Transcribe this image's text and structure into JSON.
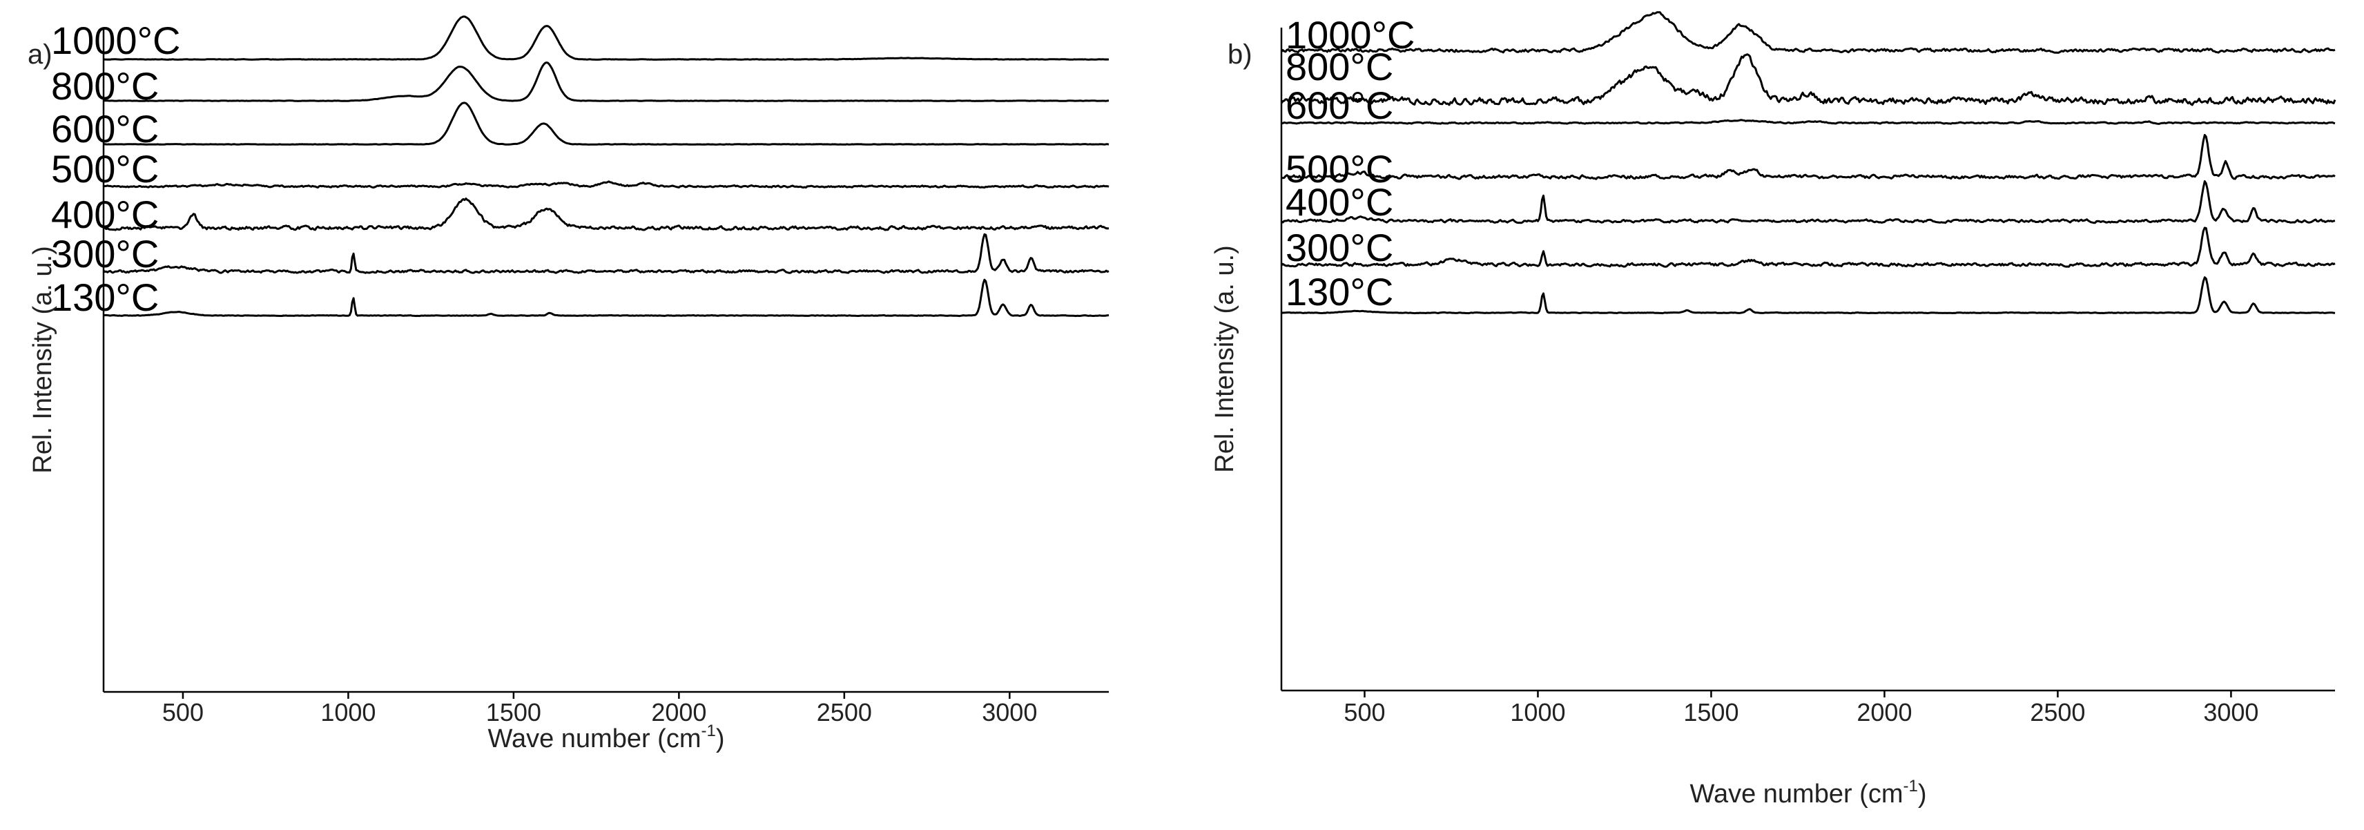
{
  "chart_data": [
    {
      "type": "line",
      "panel_label": "a)",
      "xlabel_main": "Wave number (cm",
      "xlabel_sup": "-1",
      "xlabel_close": ")",
      "ylabel": "Rel. Intensity (a. u.)",
      "xlim": [
        260,
        3300
      ],
      "xticks": [
        500,
        1000,
        1500,
        2000,
        2500,
        3000
      ],
      "y_ticks_labeled": false,
      "series": [
        {
          "name": "1000°C",
          "peaks": [
            [
              1350,
              40,
              1.0
            ],
            [
              1600,
              32,
              0.78
            ],
            [
              2700,
              100,
              0.03
            ]
          ],
          "noise": 0.006
        },
        {
          "name": "800°C",
          "peaks": [
            [
              1340,
              45,
              0.85
            ],
            [
              1170,
              60,
              0.12
            ],
            [
              1600,
              28,
              0.95
            ]
          ],
          "noise": 0.006
        },
        {
          "name": "600°C",
          "peaks": [
            [
              1350,
              35,
              1.0
            ],
            [
              1590,
              30,
              0.5
            ]
          ],
          "noise": 0.006
        },
        {
          "name": "500°C",
          "peaks": [
            [
              650,
              60,
              0.1
            ],
            [
              1360,
              35,
              0.12
            ],
            [
              1560,
              30,
              0.12
            ],
            [
              1650,
              30,
              0.13
            ],
            [
              1790,
              25,
              0.2
            ],
            [
              1900,
              25,
              0.15
            ]
          ],
          "noise": 0.05
        },
        {
          "name": "400°C",
          "peaks": [
            [
              530,
              12,
              0.35
            ],
            [
              1355,
              35,
              0.7
            ],
            [
              1600,
              35,
              0.5
            ]
          ],
          "noise": 0.05
        },
        {
          "name": "300°C",
          "peaks": [
            [
              480,
              40,
              0.12
            ],
            [
              1015,
              4,
              0.5
            ],
            [
              2925,
              10,
              1.0
            ],
            [
              2980,
              10,
              0.3
            ],
            [
              3065,
              8,
              0.35
            ]
          ],
          "noise": 0.04
        },
        {
          "name": "130°C",
          "peaks": [
            [
              480,
              40,
              0.1
            ],
            [
              1015,
              4,
              0.5
            ],
            [
              1430,
              8,
              0.05
            ],
            [
              1610,
              8,
              0.07
            ],
            [
              2925,
              10,
              1.0
            ],
            [
              2980,
              10,
              0.3
            ],
            [
              3065,
              8,
              0.3
            ]
          ],
          "noise": 0.01
        }
      ]
    },
    {
      "type": "line",
      "panel_label": "b)",
      "xlabel_main": "Wave number (cm",
      "xlabel_sup": "-1",
      "xlabel_close": ")",
      "ylabel": "Rel. Intensity (a. u.)",
      "xlim": [
        260,
        3300
      ],
      "xticks": [
        500,
        1000,
        1500,
        2000,
        2500,
        3000
      ],
      "y_ticks_labeled": false,
      "series": [
        {
          "name": "1000°C",
          "peaks": [
            [
              1340,
              60,
              0.95
            ],
            [
              1590,
              40,
              0.65
            ],
            [
              1230,
              40,
              0.25
            ]
          ],
          "noise": 0.05
        },
        {
          "name": "800°C",
          "peaks": [
            [
              1320,
              45,
              0.85
            ],
            [
              1600,
              35,
              1.0
            ],
            [
              1230,
              30,
              0.25
            ],
            [
              1450,
              30,
              0.2
            ],
            [
              1780,
              20,
              0.15
            ],
            [
              2430,
              20,
              0.15
            ],
            [
              2760,
              10,
              0.12
            ]
          ],
          "noise": 0.09
        },
        {
          "name": "600°C",
          "peaks": [
            [
              1580,
              60,
              0.2
            ],
            [
              1800,
              30,
              0.1
            ],
            [
              2430,
              20,
              0.12
            ],
            [
              2760,
              10,
              0.15
            ]
          ],
          "noise": 0.06
        },
        {
          "name": "500°C",
          "peaks": [
            [
              2925,
              10,
              1.0
            ],
            [
              2985,
              8,
              0.35
            ],
            [
              1560,
              20,
              0.15
            ],
            [
              1620,
              20,
              0.15
            ],
            [
              480,
              30,
              0.1
            ]
          ],
          "noise": 0.05
        },
        {
          "name": "400°C",
          "peaks": [
            [
              1015,
              5,
              0.65
            ],
            [
              2925,
              10,
              1.0
            ],
            [
              2980,
              10,
              0.3
            ],
            [
              3065,
              8,
              0.3
            ],
            [
              480,
              40,
              0.08
            ]
          ],
          "noise": 0.04
        },
        {
          "name": "300°C",
          "peaks": [
            [
              1015,
              5,
              0.35
            ],
            [
              2925,
              10,
              1.0
            ],
            [
              2980,
              10,
              0.3
            ],
            [
              3065,
              8,
              0.25
            ],
            [
              760,
              30,
              0.12
            ],
            [
              1610,
              20,
              0.1
            ]
          ],
          "noise": 0.05
        },
        {
          "name": "130°C",
          "peaks": [
            [
              1015,
              5,
              0.55
            ],
            [
              2925,
              10,
              1.0
            ],
            [
              2980,
              10,
              0.3
            ],
            [
              3065,
              8,
              0.25
            ],
            [
              1430,
              10,
              0.07
            ],
            [
              1610,
              8,
              0.1
            ],
            [
              480,
              40,
              0.05
            ]
          ],
          "noise": 0.01
        }
      ]
    }
  ]
}
